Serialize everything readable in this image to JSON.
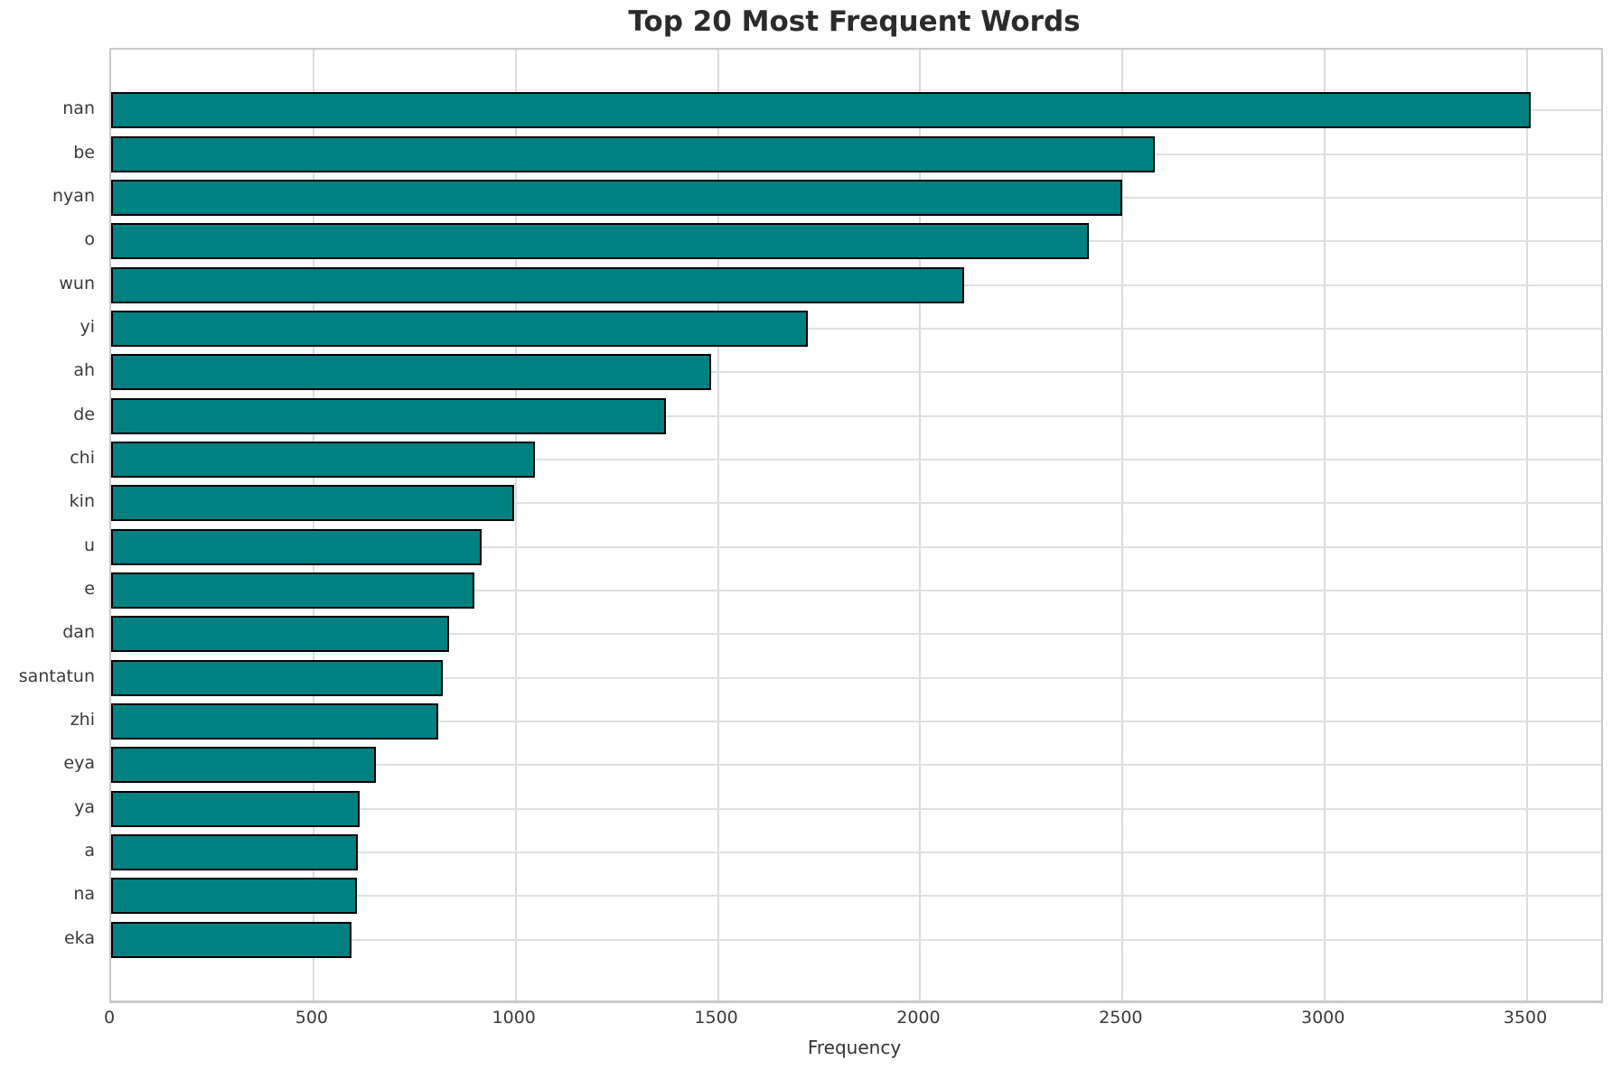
{
  "title": "Top 20 Most Frequent Words",
  "chart_data": {
    "type": "bar",
    "orientation": "horizontal",
    "title": "Top 20 Most Frequent Words",
    "xlabel": "Frequency",
    "ylabel": "",
    "categories": [
      "nan",
      "be",
      "nyan",
      "o",
      "wun",
      "yi",
      "ah",
      "de",
      "chi",
      "kin",
      "u",
      "e",
      "dan",
      "santatun",
      "zhi",
      "eya",
      "ya",
      "a",
      "na",
      "eka"
    ],
    "values": [
      3508,
      2579,
      2500,
      2417,
      2108,
      1723,
      1484,
      1372,
      1047,
      997,
      915,
      898,
      835,
      820,
      809,
      655,
      614,
      610,
      607,
      594
    ],
    "xticks": [
      0,
      500,
      1000,
      1500,
      2000,
      2500,
      3000,
      3500
    ],
    "xlim": [
      0,
      3683
    ],
    "grid": true,
    "legend": "none",
    "bar_color": "#008080",
    "bar_edge_color": "#000000",
    "gridline_color": "#dcdcdc"
  }
}
